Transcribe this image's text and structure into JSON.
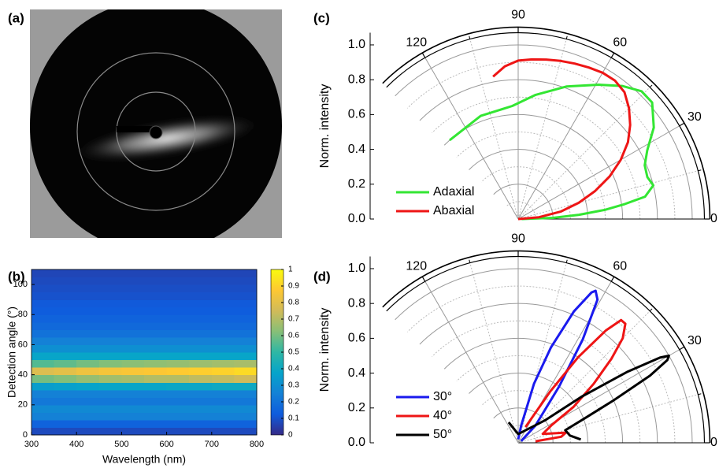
{
  "chart_data": [
    {
      "type": "image",
      "label": "(a)"
    },
    {
      "type": "heatmap",
      "label": "(b)",
      "xlabel": "Wavelength (nm)",
      "ylabel": "Detection angle (°)",
      "xbins": [
        300,
        350,
        400,
        450,
        500,
        550,
        600,
        650,
        700,
        750,
        800
      ],
      "ybins": [
        0,
        5,
        10,
        15,
        20,
        25,
        30,
        35,
        40,
        45,
        50,
        55,
        60,
        65,
        70,
        75,
        80,
        85,
        90,
        95,
        100,
        105,
        110
      ],
      "z": [
        [
          0.08,
          0.08,
          0.08,
          0.08,
          0.08,
          0.08,
          0.08,
          0.08,
          0.08,
          0.08
        ],
        [
          0.15,
          0.15,
          0.15,
          0.15,
          0.15,
          0.15,
          0.15,
          0.15,
          0.15,
          0.15
        ],
        [
          0.25,
          0.25,
          0.25,
          0.25,
          0.25,
          0.25,
          0.25,
          0.25,
          0.25,
          0.25
        ],
        [
          0.28,
          0.28,
          0.28,
          0.28,
          0.28,
          0.28,
          0.28,
          0.28,
          0.28,
          0.28
        ],
        [
          0.22,
          0.22,
          0.22,
          0.22,
          0.22,
          0.22,
          0.22,
          0.22,
          0.22,
          0.22
        ],
        [
          0.25,
          0.25,
          0.25,
          0.25,
          0.25,
          0.25,
          0.25,
          0.25,
          0.25,
          0.25
        ],
        [
          0.35,
          0.36,
          0.37,
          0.38,
          0.38,
          0.38,
          0.39,
          0.39,
          0.4,
          0.4
        ],
        [
          0.6,
          0.62,
          0.65,
          0.67,
          0.68,
          0.7,
          0.7,
          0.72,
          0.73,
          0.75
        ],
        [
          0.78,
          0.8,
          0.83,
          0.85,
          0.86,
          0.87,
          0.88,
          0.89,
          0.9,
          0.92
        ],
        [
          0.55,
          0.57,
          0.6,
          0.62,
          0.63,
          0.64,
          0.65,
          0.66,
          0.67,
          0.68
        ],
        [
          0.38,
          0.38,
          0.38,
          0.38,
          0.38,
          0.38,
          0.38,
          0.38,
          0.38,
          0.38
        ],
        [
          0.3,
          0.3,
          0.3,
          0.3,
          0.3,
          0.3,
          0.3,
          0.3,
          0.3,
          0.3
        ],
        [
          0.25,
          0.25,
          0.25,
          0.25,
          0.25,
          0.25,
          0.25,
          0.25,
          0.25,
          0.25
        ],
        [
          0.2,
          0.2,
          0.2,
          0.2,
          0.2,
          0.2,
          0.2,
          0.2,
          0.2,
          0.2
        ],
        [
          0.17,
          0.17,
          0.17,
          0.17,
          0.17,
          0.17,
          0.17,
          0.17,
          0.17,
          0.17
        ],
        [
          0.15,
          0.15,
          0.15,
          0.15,
          0.15,
          0.15,
          0.15,
          0.15,
          0.15,
          0.15
        ],
        [
          0.13,
          0.13,
          0.13,
          0.13,
          0.13,
          0.13,
          0.13,
          0.13,
          0.13,
          0.13
        ],
        [
          0.12,
          0.12,
          0.12,
          0.12,
          0.12,
          0.12,
          0.12,
          0.12,
          0.12,
          0.12
        ],
        [
          0.1,
          0.1,
          0.1,
          0.1,
          0.1,
          0.1,
          0.1,
          0.1,
          0.1,
          0.1
        ],
        [
          0.09,
          0.09,
          0.09,
          0.09,
          0.09,
          0.09,
          0.09,
          0.09,
          0.09,
          0.09
        ],
        [
          0.08,
          0.08,
          0.08,
          0.08,
          0.08,
          0.08,
          0.08,
          0.08,
          0.08,
          0.08
        ],
        [
          0.07,
          0.07,
          0.07,
          0.07,
          0.07,
          0.07,
          0.07,
          0.07,
          0.07,
          0.07
        ]
      ],
      "xlim": [
        300,
        800
      ],
      "ylim": [
        0,
        110
      ],
      "xticks": [
        300,
        400,
        500,
        600,
        700,
        800
      ],
      "yticks": [
        0,
        20,
        40,
        60,
        80,
        100
      ],
      "colormap": "parula",
      "clim": [
        0,
        1
      ],
      "cticks": [
        0,
        0.1,
        0.2,
        0.3,
        0.4,
        0.5,
        0.6,
        0.7,
        0.8,
        0.9,
        1
      ]
    },
    {
      "type": "polar",
      "label": "(c)",
      "ylabel": "Norm. intensity",
      "thetalim": [
        0,
        135
      ],
      "thetaticks": [
        0,
        30,
        60,
        90,
        120
      ],
      "thetaminor": [
        15,
        45,
        75,
        105
      ],
      "rlim": [
        0,
        1.07
      ],
      "rticks": [
        {
          "value": 0,
          "label": "0.0"
        },
        0.2,
        0.4,
        0.6,
        0.8,
        {
          "value": 1,
          "label": "1.0"
        }
      ],
      "rminor": [
        0.1,
        0.3,
        0.5,
        0.7,
        0.9
      ],
      "legend": "lower left",
      "series": [
        {
          "name": "Adaxial",
          "color": "#33e633",
          "theta": [
            0,
            2,
            4,
            6,
            8,
            10,
            14,
            18,
            23,
            28,
            34,
            41,
            46,
            52,
            59,
            70,
            82,
            93,
            110,
            131
          ],
          "values": [
            0.02,
            0.2,
            0.35,
            0.5,
            0.62,
            0.74,
            0.8,
            0.78,
            0.79,
            0.84,
            0.94,
            1.02,
            1.02,
            0.97,
            0.9,
            0.81,
            0.72,
            0.65,
            0.63,
            0.6
          ]
        },
        {
          "name": "Abaxial",
          "color": "#ee1515",
          "theta": [
            0,
            5,
            10,
            15,
            20,
            25,
            30,
            35,
            40,
            45,
            50,
            55,
            60,
            65,
            70,
            75,
            80,
            85,
            90,
            95,
            100
          ],
          "values": [
            0.0,
            0.12,
            0.25,
            0.36,
            0.47,
            0.58,
            0.68,
            0.77,
            0.84,
            0.9,
            0.95,
            0.97,
            0.97,
            0.96,
            0.95,
            0.94,
            0.93,
            0.92,
            0.91,
            0.88,
            0.83
          ]
        }
      ]
    },
    {
      "type": "polar",
      "label": "(d)",
      "ylabel": "Norm. intensity",
      "thetalim": [
        0,
        135
      ],
      "thetaticks": [
        0,
        30,
        60,
        90,
        120
      ],
      "thetaminor": [
        15,
        45,
        75,
        105
      ],
      "rlim": [
        0,
        1.07
      ],
      "rticks": [
        {
          "value": 0,
          "label": "0.0"
        },
        0.2,
        0.4,
        0.6,
        0.8,
        {
          "value": 1,
          "label": "1.0"
        }
      ],
      "rminor": [
        0.1,
        0.3,
        0.5,
        0.7,
        0.9
      ],
      "legend": "lower left",
      "series": [
        {
          "name": "30°",
          "color": "#1a1aee",
          "theta": [
            90,
            80,
            75,
            71,
            67,
            64,
            63,
            61,
            58,
            54,
            45,
            30
          ],
          "values": [
            0.02,
            0.1,
            0.35,
            0.58,
            0.82,
            0.96,
            0.98,
            0.94,
            0.7,
            0.4,
            0.14,
            0.02
          ]
        },
        {
          "name": "40°",
          "color": "#ee1515",
          "theta": [
            65,
            58,
            55,
            52,
            50,
            48,
            45,
            42,
            38,
            33,
            28,
            20,
            12,
            8,
            5
          ],
          "values": [
            0.1,
            0.35,
            0.6,
            0.82,
            0.92,
            0.92,
            0.85,
            0.72,
            0.55,
            0.38,
            0.22,
            0.15,
            0.28,
            0.25,
            0.1
          ]
        },
        {
          "name": "50°",
          "color": "#000000",
          "theta": [
            115,
            90,
            40,
            36,
            33,
            31,
            30,
            29,
            27,
            24,
            20,
            15,
            8,
            3
          ],
          "values": [
            0.13,
            0.05,
            0.2,
            0.45,
            0.75,
            0.95,
            1.0,
            0.98,
            0.85,
            0.6,
            0.4,
            0.28,
            0.3,
            0.36
          ]
        }
      ]
    }
  ]
}
